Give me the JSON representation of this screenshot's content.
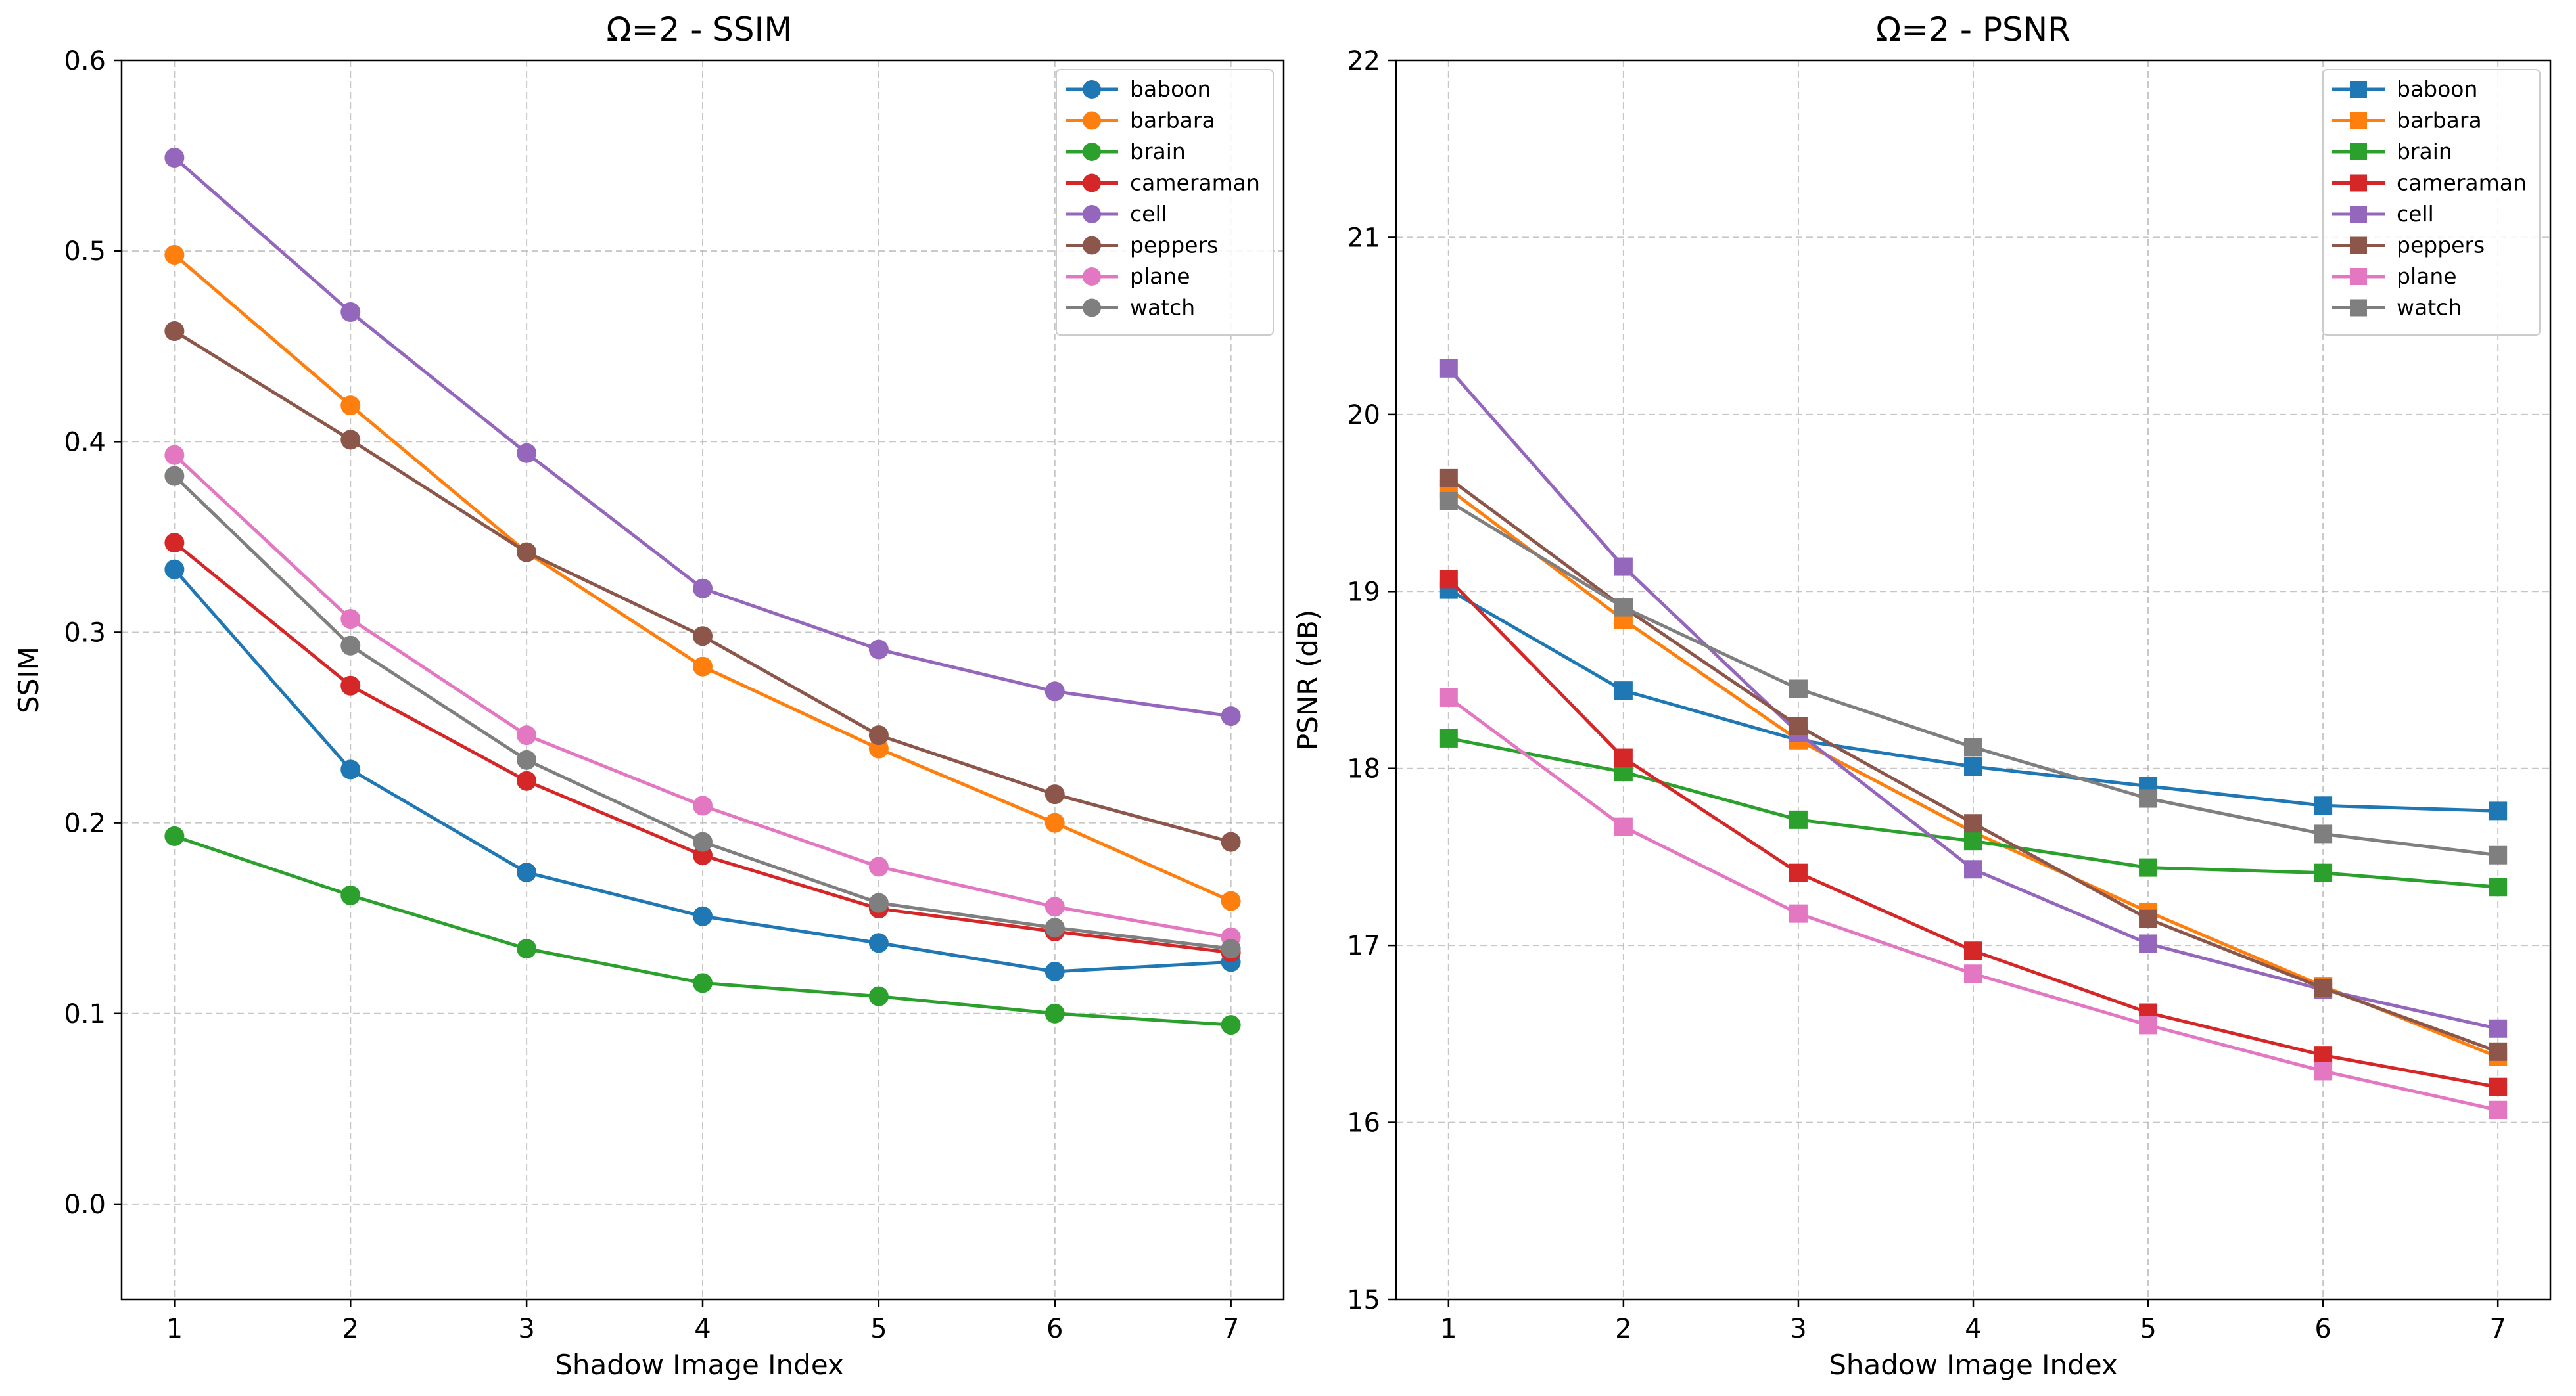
{
  "chart_data": [
    {
      "type": "line",
      "title": "Ω=2 - SSIM",
      "xlabel": "Shadow Image Index",
      "ylabel": "SSIM",
      "x": [
        1,
        2,
        3,
        4,
        5,
        6,
        7
      ],
      "xticks": [
        "1",
        "2",
        "3",
        "4",
        "5",
        "6",
        "7"
      ],
      "ylim": [
        -0.05,
        0.6
      ],
      "yticks": [
        "0.0",
        "0.1",
        "0.2",
        "0.3",
        "0.4",
        "0.5",
        "0.6"
      ],
      "marker": "circle",
      "grid": true,
      "legend_position": "top-right",
      "series": [
        {
          "name": "baboon",
          "color": "#1f77b4",
          "values": [
            0.333,
            0.228,
            0.174,
            0.151,
            0.137,
            0.122,
            0.127
          ]
        },
        {
          "name": "barbara",
          "color": "#ff7f0e",
          "values": [
            0.498,
            0.419,
            0.342,
            0.282,
            0.239,
            0.2,
            0.159
          ]
        },
        {
          "name": "brain",
          "color": "#2ca02c",
          "values": [
            0.193,
            0.162,
            0.134,
            0.116,
            0.109,
            0.1,
            0.094
          ]
        },
        {
          "name": "cameraman",
          "color": "#d62728",
          "values": [
            0.347,
            0.272,
            0.222,
            0.183,
            0.155,
            0.143,
            0.132
          ]
        },
        {
          "name": "cell",
          "color": "#9467bd",
          "values": [
            0.549,
            0.468,
            0.394,
            0.323,
            0.291,
            0.269,
            0.256
          ]
        },
        {
          "name": "peppers",
          "color": "#8c564b",
          "values": [
            0.458,
            0.401,
            0.342,
            0.298,
            0.246,
            0.215,
            0.19
          ]
        },
        {
          "name": "plane",
          "color": "#e377c2",
          "values": [
            0.393,
            0.307,
            0.246,
            0.209,
            0.177,
            0.156,
            0.14
          ]
        },
        {
          "name": "watch",
          "color": "#7f7f7f",
          "values": [
            0.382,
            0.293,
            0.233,
            0.19,
            0.158,
            0.145,
            0.134
          ]
        }
      ]
    },
    {
      "type": "line",
      "title": "Ω=2 - PSNR",
      "xlabel": "Shadow Image Index",
      "ylabel": "PSNR (dB)",
      "x": [
        1,
        2,
        3,
        4,
        5,
        6,
        7
      ],
      "xticks": [
        "1",
        "2",
        "3",
        "4",
        "5",
        "6",
        "7"
      ],
      "ylim": [
        15,
        22
      ],
      "yticks": [
        "15",
        "16",
        "17",
        "18",
        "19",
        "20",
        "21",
        "22"
      ],
      "marker": "square",
      "grid": true,
      "legend_position": "top-right",
      "series": [
        {
          "name": "baboon",
          "color": "#1f77b4",
          "values": [
            19.01,
            18.44,
            18.16,
            18.01,
            17.9,
            17.79,
            17.76
          ]
        },
        {
          "name": "barbara",
          "color": "#ff7f0e",
          "values": [
            19.58,
            18.84,
            18.16,
            17.64,
            17.19,
            16.77,
            16.37
          ]
        },
        {
          "name": "brain",
          "color": "#2ca02c",
          "values": [
            18.17,
            17.98,
            17.71,
            17.59,
            17.44,
            17.41,
            17.33
          ]
        },
        {
          "name": "cameraman",
          "color": "#d62728",
          "values": [
            19.07,
            18.06,
            17.41,
            16.97,
            16.62,
            16.38,
            16.2
          ]
        },
        {
          "name": "cell",
          "color": "#9467bd",
          "values": [
            20.26,
            19.14,
            18.2,
            17.43,
            17.01,
            16.75,
            16.53
          ]
        },
        {
          "name": "peppers",
          "color": "#8c564b",
          "values": [
            19.64,
            18.91,
            18.24,
            17.69,
            17.15,
            16.76,
            16.4
          ]
        },
        {
          "name": "plane",
          "color": "#e377c2",
          "values": [
            18.4,
            17.67,
            17.18,
            16.84,
            16.55,
            16.29,
            16.07
          ]
        },
        {
          "name": "watch",
          "color": "#7f7f7f",
          "values": [
            19.51,
            18.91,
            18.45,
            18.12,
            17.83,
            17.63,
            17.51
          ]
        }
      ]
    }
  ]
}
